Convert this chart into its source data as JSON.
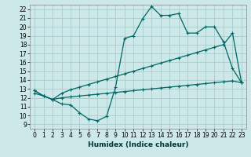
{
  "title": "",
  "xlabel": "Humidex (Indice chaleur)",
  "background_color": "#cce8e8",
  "grid_color": "#aacccc",
  "line_color": "#006666",
  "xlim": [
    -0.5,
    23.5
  ],
  "ylim": [
    8.5,
    22.5
  ],
  "xticks": [
    0,
    1,
    2,
    3,
    4,
    5,
    6,
    7,
    8,
    9,
    10,
    11,
    12,
    13,
    14,
    15,
    16,
    17,
    18,
    19,
    20,
    21,
    22,
    23
  ],
  "yticks": [
    9,
    10,
    11,
    12,
    13,
    14,
    15,
    16,
    17,
    18,
    19,
    20,
    21,
    22
  ],
  "line1_x": [
    0,
    1,
    2,
    3,
    4,
    5,
    6,
    7,
    8,
    9,
    10,
    11,
    12,
    13,
    14,
    15,
    16,
    17,
    18,
    19,
    20,
    21,
    22,
    23
  ],
  "line1_y": [
    12.8,
    12.2,
    11.8,
    11.3,
    11.2,
    10.3,
    9.6,
    9.4,
    9.9,
    13.2,
    18.7,
    19.0,
    20.9,
    22.3,
    21.3,
    21.3,
    21.5,
    19.3,
    19.3,
    20.0,
    20.0,
    18.3,
    15.3,
    13.7
  ],
  "line2_x": [
    0,
    1,
    2,
    3,
    4,
    5,
    6,
    7,
    8,
    9,
    10,
    11,
    12,
    13,
    14,
    15,
    16,
    17,
    18,
    19,
    20,
    21,
    22,
    23
  ],
  "line2_y": [
    12.8,
    12.2,
    11.8,
    12.5,
    12.9,
    13.2,
    13.5,
    13.8,
    14.1,
    14.4,
    14.7,
    15.0,
    15.3,
    15.6,
    15.9,
    16.2,
    16.5,
    16.8,
    17.1,
    17.4,
    17.7,
    18.0,
    19.3,
    13.7
  ],
  "line3_x": [
    0,
    1,
    2,
    3,
    4,
    5,
    6,
    7,
    8,
    9,
    10,
    11,
    12,
    13,
    14,
    15,
    16,
    17,
    18,
    19,
    20,
    21,
    22,
    23
  ],
  "line3_y": [
    12.5,
    12.2,
    11.8,
    12.0,
    12.1,
    12.2,
    12.3,
    12.4,
    12.5,
    12.6,
    12.7,
    12.8,
    12.9,
    13.0,
    13.1,
    13.2,
    13.3,
    13.4,
    13.5,
    13.6,
    13.7,
    13.8,
    13.9,
    13.7
  ],
  "tick_fontsize": 5.5,
  "xlabel_fontsize": 6.5
}
